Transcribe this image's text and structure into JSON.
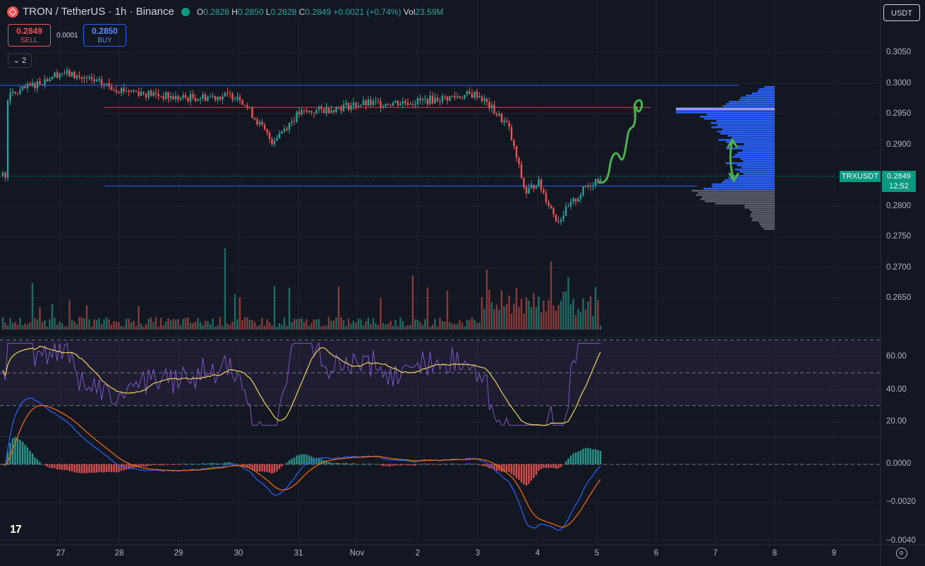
{
  "header": {
    "symbol_title": "TRON / TetherUS · 1h · Binance",
    "open_label": "O",
    "open": "0.2828",
    "high_label": "H",
    "high": "0.2850",
    "low_label": "L",
    "low": "0.2828",
    "close_label": "C",
    "close": "0.2849",
    "change": "+0.0021 (+0.74%)",
    "vol_label": "Vol",
    "vol": "23.59M"
  },
  "trade": {
    "sell_price": "0.2849",
    "sell_label": "SELL",
    "spread": "0.0001",
    "buy_price": "0.2850",
    "buy_label": "BUY"
  },
  "indicators_collapse": "2",
  "currency": "USDT",
  "price_axis": [
    "0.3050",
    "0.3000",
    "0.2950",
    "0.2900",
    "0.2850",
    "0.2800",
    "0.2750",
    "0.2700",
    "0.2650"
  ],
  "rsi_axis": [
    "60.00",
    "40.00",
    "20.00"
  ],
  "macd_axis": [
    "0.0000",
    "−0.0020",
    "−0.0040"
  ],
  "time_axis": [
    "27",
    "28",
    "29",
    "30",
    "31",
    "Nov",
    "2",
    "3",
    "4",
    "5",
    "6",
    "7",
    "8",
    "9"
  ],
  "last_price": {
    "symbol": "TRXUSDT",
    "price": "0.2849",
    "countdown": "12:52"
  },
  "colors": {
    "bg": "#131722",
    "up": "#26a69a",
    "down": "#ef5350",
    "hline_blue": "#2962ff",
    "hline_red": "#f23645",
    "profile_blue": "#2962ff",
    "profile_gray": "#5d606b",
    "rsi": "#7e57c2",
    "rsi_ma": "#f7d154",
    "macd": "#2962ff",
    "signal": "#ff6d00",
    "drawing": "#4caf50"
  },
  "chart_data": {
    "type": "candlestick",
    "price_range": [
      0.2735,
      0.307
    ],
    "key_levels": [
      0.2996,
      0.296,
      0.2832
    ],
    "key_points": [
      {
        "x": "26",
        "y": 0.2975
      },
      {
        "x": "27",
        "y": 0.3018
      },
      {
        "x": "28",
        "y": 0.299
      },
      {
        "x": "29",
        "y": 0.2975
      },
      {
        "x": "30",
        "y": 0.298
      },
      {
        "x": "30.5",
        "y": 0.2905
      },
      {
        "x": "31",
        "y": 0.295
      },
      {
        "x": "Nov",
        "y": 0.2965
      },
      {
        "x": "2",
        "y": 0.297
      },
      {
        "x": "3",
        "y": 0.2982
      },
      {
        "x": "3.5",
        "y": 0.293
      },
      {
        "x": "3.8",
        "y": 0.282
      },
      {
        "x": "4",
        "y": 0.284
      },
      {
        "x": "4.3",
        "y": 0.2775
      },
      {
        "x": "4.8",
        "y": 0.283
      },
      {
        "x": "5",
        "y": 0.2849
      }
    ],
    "rsi_range": [
      15,
      70
    ],
    "rsi_bands": [
      70,
      50,
      30
    ],
    "macd_range": [
      -0.0042,
      0.0012
    ]
  }
}
